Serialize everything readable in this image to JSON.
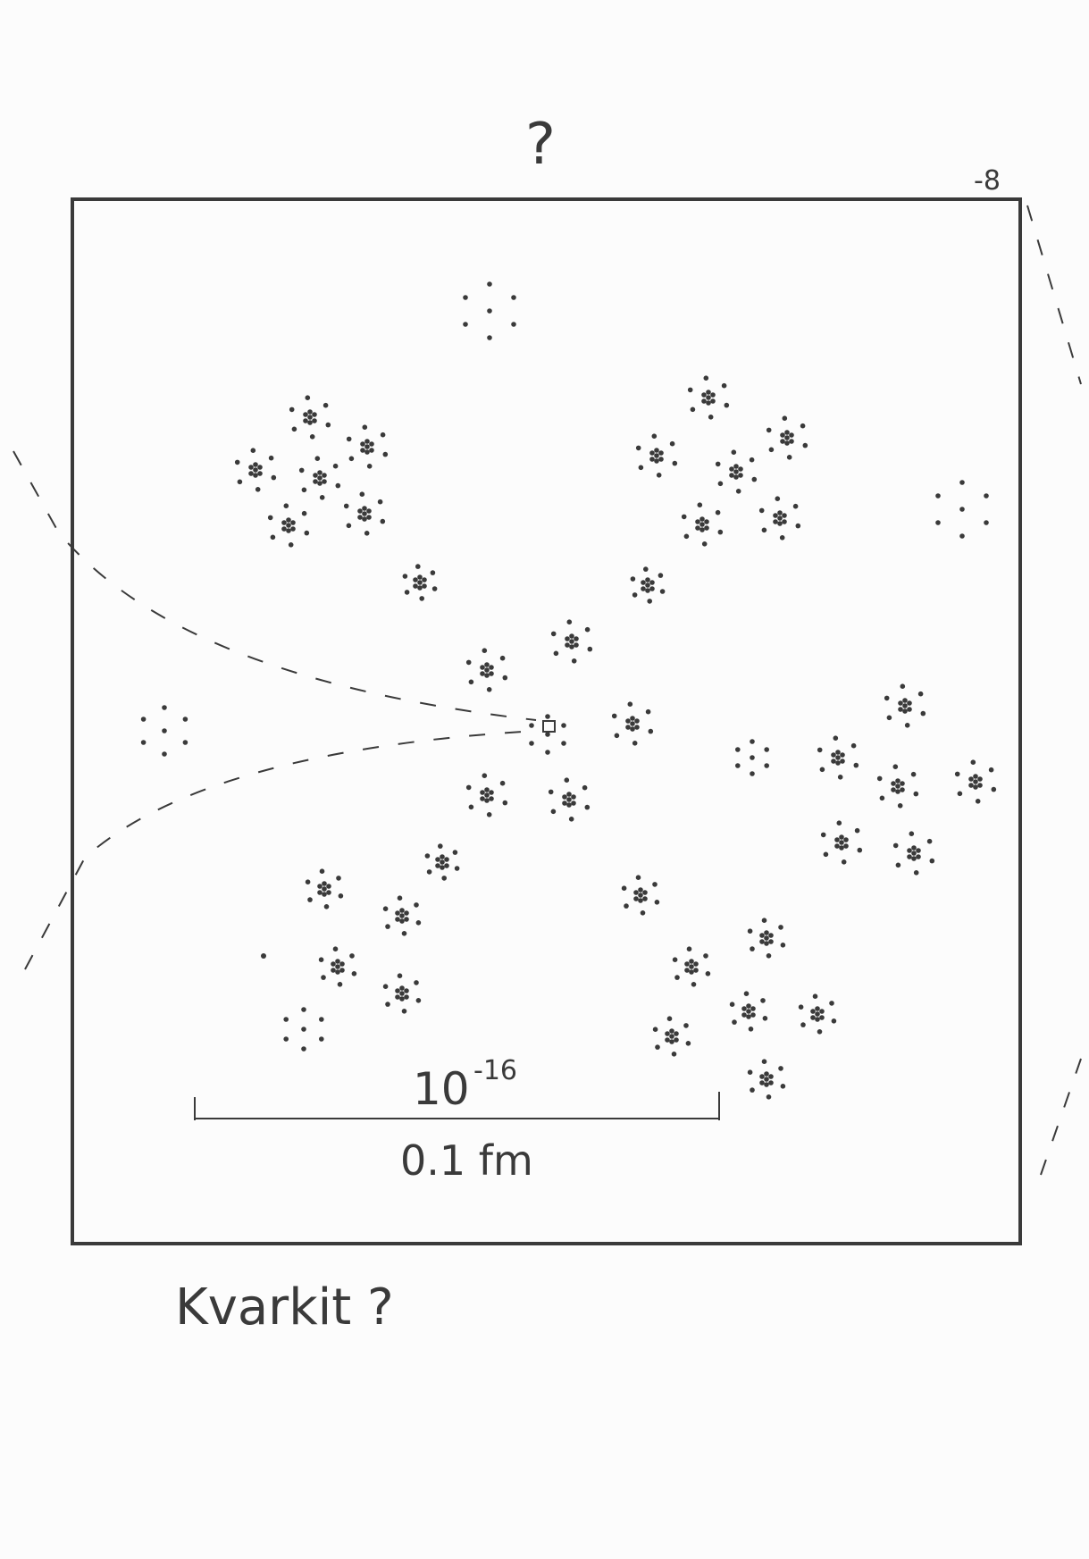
{
  "drawing": {
    "top_mark": "?",
    "corner_exponent": "-8",
    "scale_power_base": "10",
    "scale_power_exp": "-16",
    "scale_length_label": "0.1 fm",
    "caption": "Kvarkit ?"
  },
  "colors": {
    "ink": "#3a3a3a",
    "paper": "#fcfcfc"
  }
}
